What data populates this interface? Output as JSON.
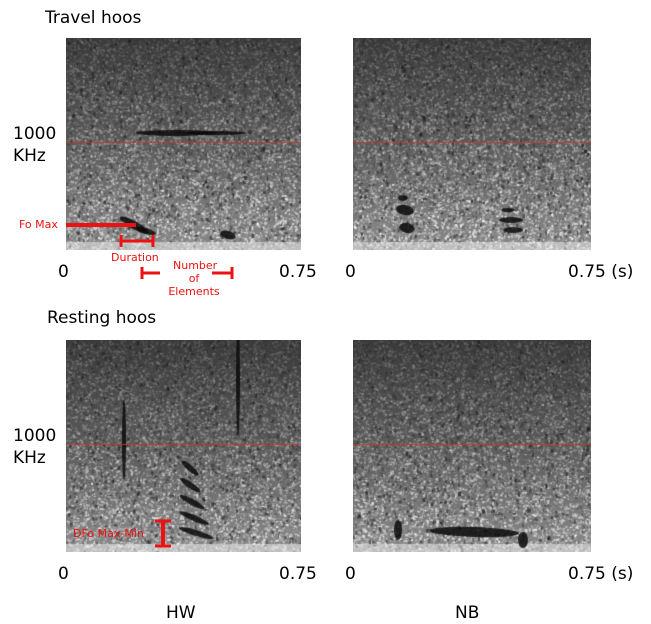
{
  "sections": {
    "travel": "Travel hoos",
    "resting": "Resting hoos"
  },
  "y_label": {
    "value": "1000",
    "unit": "KHz"
  },
  "x_axis": {
    "start": "0",
    "end_left": "0.75",
    "end_right": "0.75 (s)"
  },
  "columns": {
    "left": "HW",
    "right": "NB"
  },
  "annotations": {
    "fo_max": "Fo Max",
    "duration": "Duration",
    "elements_1": "Number",
    "elements_2": "of",
    "elements_3": "Elements",
    "dfo": "DFo Max-Min"
  },
  "colors": {
    "annotation": "#ee1111",
    "reference_line": "#c0392b"
  }
}
